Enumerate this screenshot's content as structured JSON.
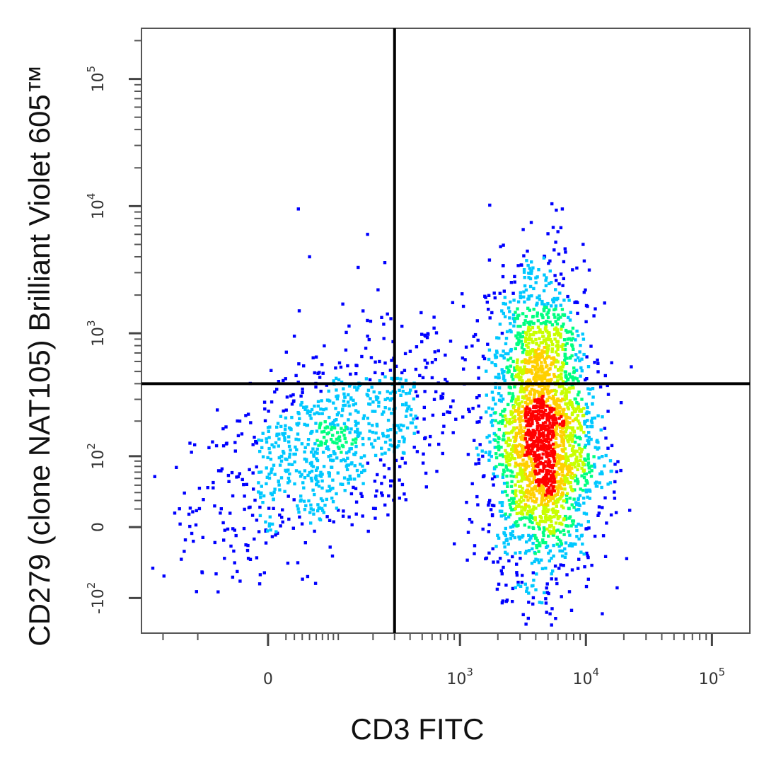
{
  "chart_data": {
    "type": "scatter",
    "subtype": "flow-cytometry-density-dot-plot",
    "xlabel": "CD3 FITC",
    "ylabel": "CD279 (clone NAT105)  Brilliant Violet 605™",
    "x_scale": "biexponential",
    "y_scale": "biexponential",
    "xlim": [
      -300,
      200000
    ],
    "ylim": [
      -200,
      250000
    ],
    "x_ticks": [
      {
        "value": 0,
        "label": "0"
      },
      {
        "value": 1000,
        "label": "10",
        "exponent": "3"
      },
      {
        "value": 10000,
        "label": "10",
        "exponent": "4"
      },
      {
        "value": 100000,
        "label": "10",
        "exponent": "5"
      }
    ],
    "y_ticks": [
      {
        "value": -100,
        "label": "-10",
        "exponent": "2"
      },
      {
        "value": 0,
        "label": "0"
      },
      {
        "value": 100,
        "label": "10",
        "exponent": "2"
      },
      {
        "value": 1000,
        "label": "10",
        "exponent": "3"
      },
      {
        "value": 10000,
        "label": "10",
        "exponent": "4"
      },
      {
        "value": 100000,
        "label": "10",
        "exponent": "5"
      }
    ],
    "quadrant_gate": {
      "x": 300,
      "y": 400
    },
    "density_colormap": [
      "#0000ff",
      "#00c8ff",
      "#00ff80",
      "#c8ff00",
      "#ffd000",
      "#ff0000"
    ],
    "populations": [
      {
        "name": "",
        "x_center": 80,
        "y_center": 120,
        "x_spread": 0.55,
        "y_spread": 0.45,
        "count": 900,
        "corr": 0.55
      },
      {
        "name": "",
        "x_center": 4500,
        "y_center": 130,
        "x_spread": 0.22,
        "y_spread": 0.55,
        "count": 2200,
        "corr": 0.0
      },
      {
        "name": "",
        "x_center": 4200,
        "y_center": 1100,
        "x_spread": 0.18,
        "y_spread": 0.35,
        "count": 260,
        "corr": 0.0
      }
    ],
    "sparse_points": [
      {
        "x": 35,
        "y": 9500
      },
      {
        "x": 180,
        "y": 6000
      },
      {
        "x": 50,
        "y": 4000
      },
      {
        "x": 150,
        "y": 3300
      },
      {
        "x": 250,
        "y": 3600
      },
      {
        "x": 220,
        "y": 2200
      },
      {
        "x": 110,
        "y": 1700
      },
      {
        "x": 165,
        "y": 1500
      },
      {
        "x": 30,
        "y": 950
      },
      {
        "x": 180,
        "y": 950
      },
      {
        "x": 60,
        "y": 650
      },
      {
        "x": 240,
        "y": 480
      },
      {
        "x": 6500,
        "y": 9500
      },
      {
        "x": 5500,
        "y": 6800
      },
      {
        "x": 6000,
        "y": 6300
      },
      {
        "x": 9500,
        "y": 5000
      },
      {
        "x": 4700,
        "y": 4000
      },
      {
        "x": 2200,
        "y": 3400
      },
      {
        "x": 1900,
        "y": 1900
      },
      {
        "x": 1100,
        "y": 620
      },
      {
        "x": 15000,
        "y": 240
      },
      {
        "x": 17000,
        "y": 55
      },
      {
        "x": 1300,
        "y": -30
      }
    ]
  }
}
